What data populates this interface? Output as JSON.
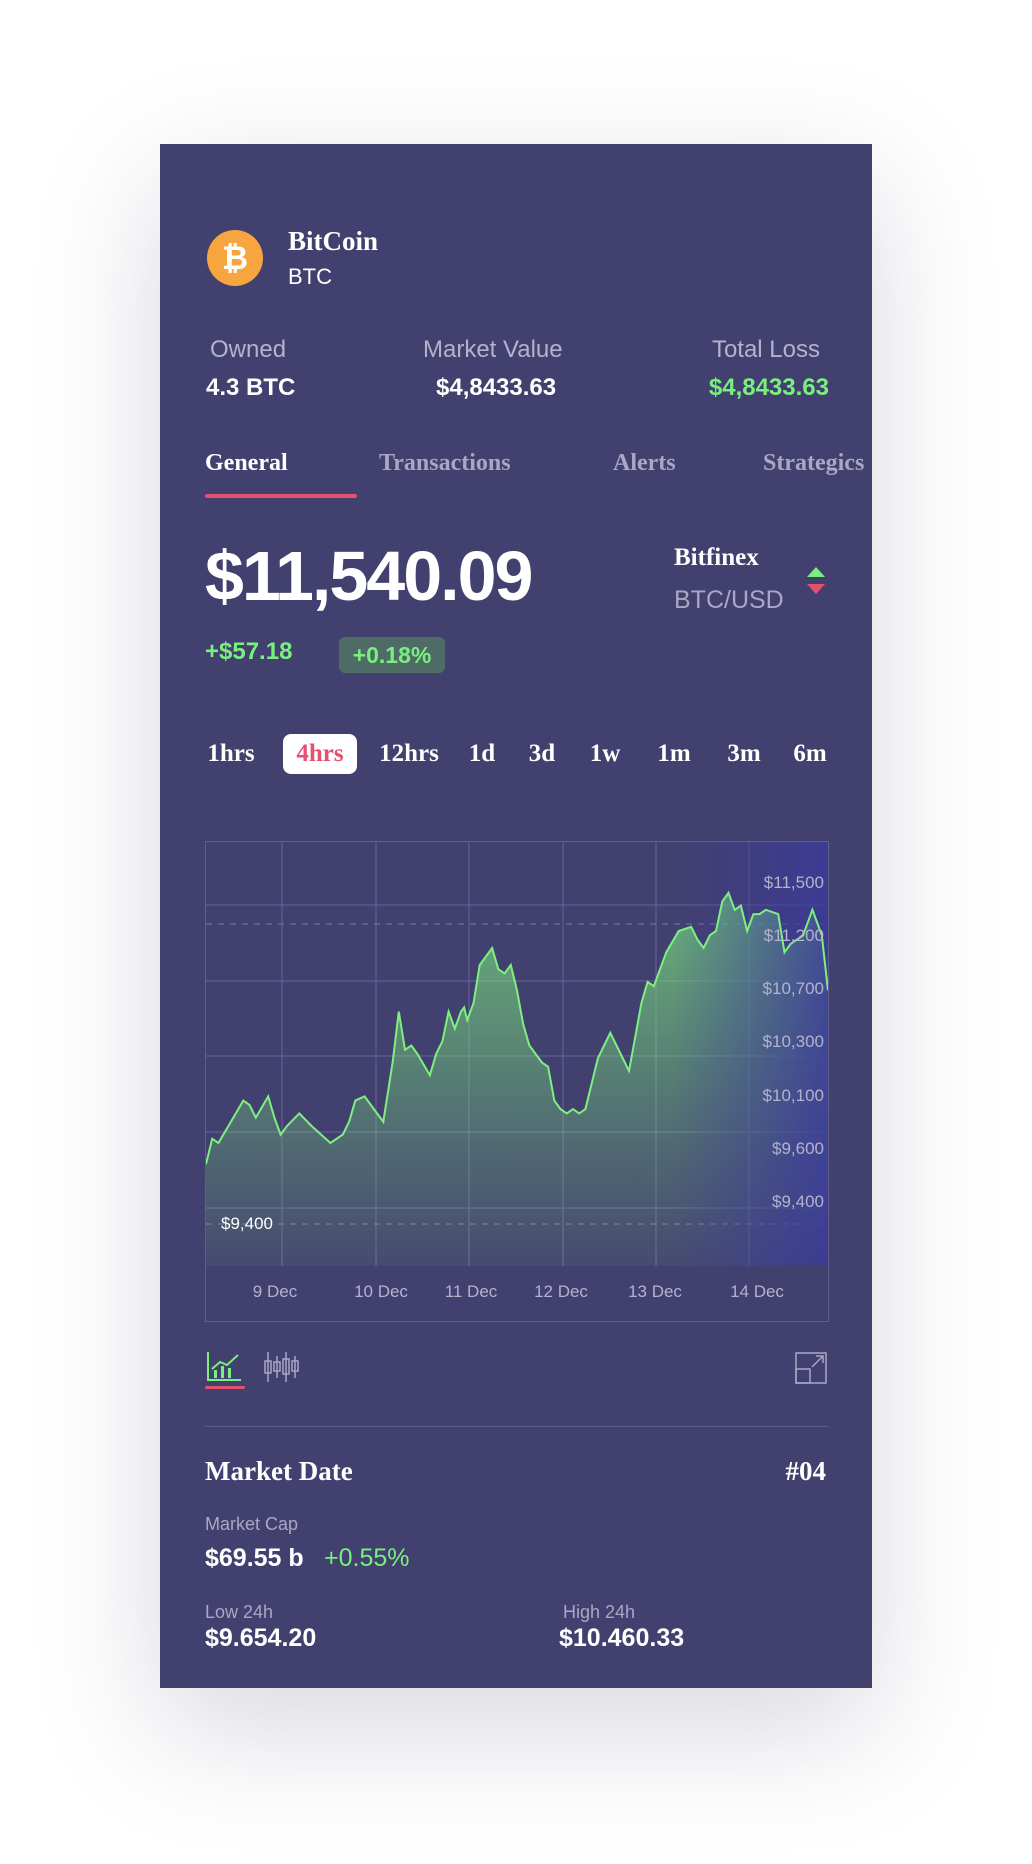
{
  "coin": {
    "name": "BitCoin",
    "symbol": "BTC",
    "icon": "bitcoin-icon",
    "icon_glyph": "₿",
    "icon_color": "#f7a53f"
  },
  "stats": [
    {
      "label": "Owned",
      "value": "4.3 BTC"
    },
    {
      "label": "Market Value",
      "value": "$4,8433.63"
    },
    {
      "label": "Total Loss",
      "value": "$4,8433.63"
    }
  ],
  "tabs": [
    {
      "label": "General",
      "active": true
    },
    {
      "label": "Transactions",
      "active": false
    },
    {
      "label": "Alerts",
      "active": false
    },
    {
      "label": "Strategics",
      "active": false
    }
  ],
  "price": {
    "current": "$11,540.09",
    "change": "+$57.18",
    "change_pct": "+0.18%",
    "exchange": "Bitfinex",
    "pair": "BTC/USD"
  },
  "time_ranges": [
    {
      "label": "1hrs",
      "active": false
    },
    {
      "label": "4hrs",
      "active": true
    },
    {
      "label": "12hrs",
      "active": false
    },
    {
      "label": "1d",
      "active": false
    },
    {
      "label": "3d",
      "active": false
    },
    {
      "label": "1w",
      "active": false
    },
    {
      "label": "1m",
      "active": false
    },
    {
      "label": "3m",
      "active": false
    },
    {
      "label": "6m",
      "active": false
    }
  ],
  "chart_data": {
    "type": "area",
    "x_labels": [
      "9 Dec",
      "10 Dec",
      "11 Dec",
      "12 Dec",
      "13 Dec",
      "14 Dec"
    ],
    "y_labels": [
      "$11,500",
      "$11,200",
      "$10,700",
      "$10,300",
      "$10,100",
      "$9,600",
      "$9,400"
    ],
    "annotations": [
      {
        "label": "$9,400",
        "y_level": 0.1
      }
    ],
    "series_points": [
      [
        0.0,
        0.24
      ],
      [
        0.01,
        0.3
      ],
      [
        0.02,
        0.29
      ],
      [
        0.04,
        0.34
      ],
      [
        0.06,
        0.39
      ],
      [
        0.07,
        0.38
      ],
      [
        0.08,
        0.35
      ],
      [
        0.1,
        0.4
      ],
      [
        0.11,
        0.35
      ],
      [
        0.12,
        0.31
      ],
      [
        0.13,
        0.33
      ],
      [
        0.15,
        0.36
      ],
      [
        0.17,
        0.33
      ],
      [
        0.2,
        0.29
      ],
      [
        0.22,
        0.31
      ],
      [
        0.23,
        0.34
      ],
      [
        0.24,
        0.39
      ],
      [
        0.255,
        0.4
      ],
      [
        0.27,
        0.37
      ],
      [
        0.285,
        0.34
      ],
      [
        0.3,
        0.48
      ],
      [
        0.31,
        0.6
      ],
      [
        0.32,
        0.51
      ],
      [
        0.33,
        0.52
      ],
      [
        0.34,
        0.5
      ],
      [
        0.36,
        0.45
      ],
      [
        0.37,
        0.5
      ],
      [
        0.38,
        0.53
      ],
      [
        0.39,
        0.6
      ],
      [
        0.4,
        0.56
      ],
      [
        0.41,
        0.6
      ],
      [
        0.415,
        0.61
      ],
      [
        0.42,
        0.58
      ],
      [
        0.43,
        0.62
      ],
      [
        0.44,
        0.71
      ],
      [
        0.46,
        0.75
      ],
      [
        0.47,
        0.7
      ],
      [
        0.48,
        0.69
      ],
      [
        0.49,
        0.71
      ],
      [
        0.5,
        0.65
      ],
      [
        0.51,
        0.57
      ],
      [
        0.52,
        0.52
      ],
      [
        0.53,
        0.5
      ],
      [
        0.54,
        0.48
      ],
      [
        0.55,
        0.47
      ],
      [
        0.56,
        0.39
      ],
      [
        0.57,
        0.37
      ],
      [
        0.58,
        0.36
      ],
      [
        0.59,
        0.37
      ],
      [
        0.6,
        0.36
      ],
      [
        0.61,
        0.37
      ],
      [
        0.63,
        0.49
      ],
      [
        0.65,
        0.55
      ],
      [
        0.66,
        0.52
      ],
      [
        0.68,
        0.46
      ],
      [
        0.7,
        0.62
      ],
      [
        0.71,
        0.67
      ],
      [
        0.72,
        0.66
      ],
      [
        0.74,
        0.74
      ],
      [
        0.76,
        0.79
      ],
      [
        0.78,
        0.8
      ],
      [
        0.79,
        0.77
      ],
      [
        0.8,
        0.75
      ],
      [
        0.81,
        0.78
      ],
      [
        0.82,
        0.79
      ],
      [
        0.83,
        0.86
      ],
      [
        0.84,
        0.88
      ],
      [
        0.85,
        0.84
      ],
      [
        0.86,
        0.85
      ],
      [
        0.87,
        0.79
      ],
      [
        0.88,
        0.83
      ],
      [
        0.89,
        0.83
      ],
      [
        0.9,
        0.84
      ],
      [
        0.92,
        0.83
      ],
      [
        0.93,
        0.74
      ],
      [
        0.94,
        0.76
      ],
      [
        0.96,
        0.78
      ],
      [
        0.975,
        0.84
      ],
      [
        0.99,
        0.78
      ],
      [
        1.0,
        0.65
      ]
    ],
    "grid": true,
    "line_color": "#7ef07f"
  },
  "chart_controls": {
    "line_icon": "line-chart-icon",
    "candle_icon": "candlestick-icon",
    "expand_icon": "expand-icon"
  },
  "market": {
    "title": "Market Date",
    "rank": "#04",
    "cap_label": "Market Cap",
    "cap_value": "$69.55 b",
    "cap_change": "+0.55%",
    "low_label": "Low 24h",
    "low_value": "$9.654.20",
    "high_label": "High 24h",
    "high_value": "$10.460.33"
  },
  "colors": {
    "background": "#42406e",
    "accent_red": "#e5506f",
    "positive_green": "#78f07e"
  }
}
